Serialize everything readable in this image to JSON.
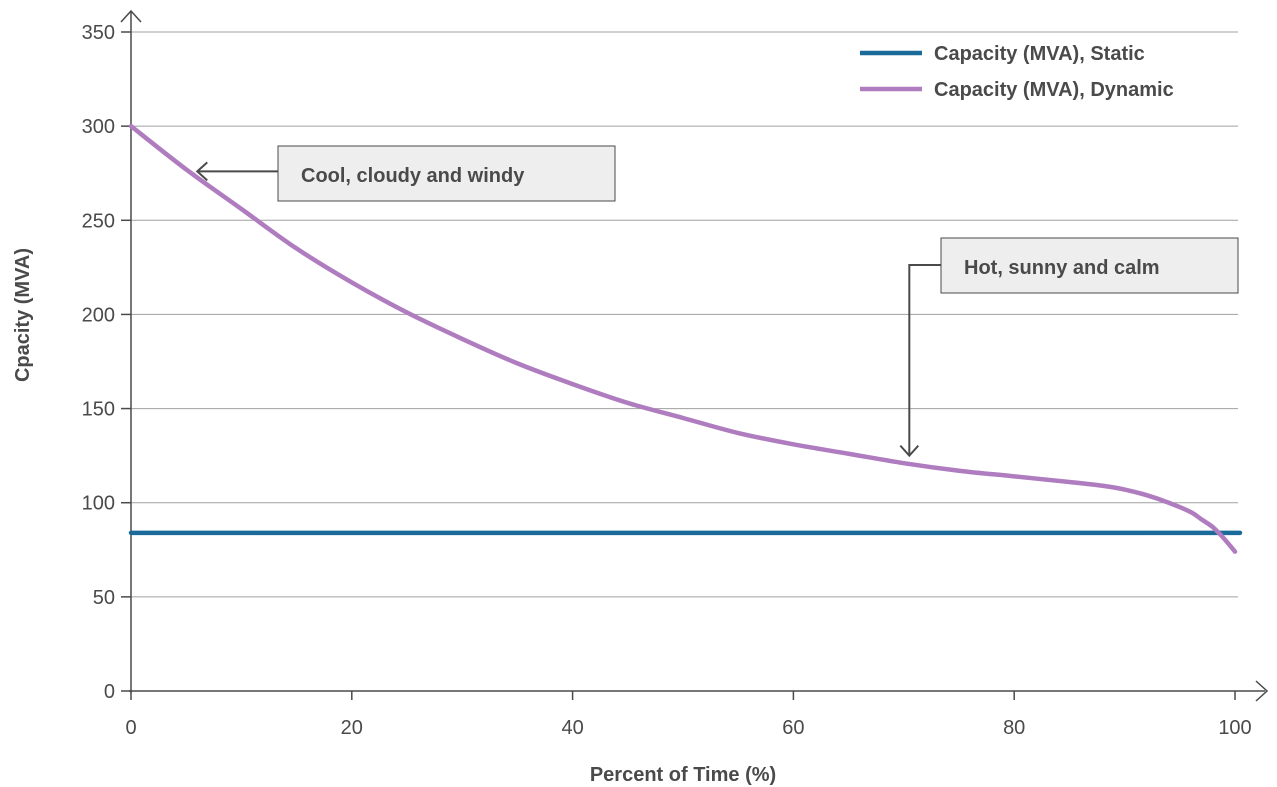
{
  "chart_data": {
    "type": "line",
    "title": "",
    "xlabel": "Percent of Time (%)",
    "ylabel": "Cpacity (MVA)",
    "xlim": [
      0,
      100
    ],
    "ylim": [
      0,
      350
    ],
    "xticks": [
      0,
      20,
      40,
      60,
      80,
      100
    ],
    "yticks": [
      0,
      50,
      100,
      150,
      200,
      250,
      300,
      350
    ],
    "grid": "horizontal",
    "legend_position": "top-right",
    "series": [
      {
        "name": "Capacity (MVA), Static",
        "color": "#1a6b9a",
        "x": [
          0,
          100
        ],
        "y": [
          84,
          84
        ]
      },
      {
        "name": "Capacity (MVA), Dynamic",
        "color": "#b07cc0",
        "x": [
          0,
          5,
          10,
          15,
          20,
          25,
          30,
          35,
          40,
          45,
          50,
          55,
          60,
          65,
          70,
          75,
          80,
          85,
          88,
          90,
          92,
          94,
          96,
          97,
          98,
          99,
          100
        ],
        "y": [
          300,
          277,
          256,
          235,
          217,
          201,
          187,
          174,
          163,
          153,
          145,
          137,
          131,
          126,
          121,
          117,
          114,
          111,
          109,
          107,
          104,
          100,
          95,
          91,
          87,
          81,
          74
        ]
      }
    ],
    "annotations": [
      {
        "text": "Cool, cloudy and windy",
        "arrow_to": {
          "x": 6,
          "y": 276
        }
      },
      {
        "text": "Hot, sunny and calm",
        "arrow_to": {
          "x": 70.5,
          "y": 125
        }
      }
    ]
  }
}
